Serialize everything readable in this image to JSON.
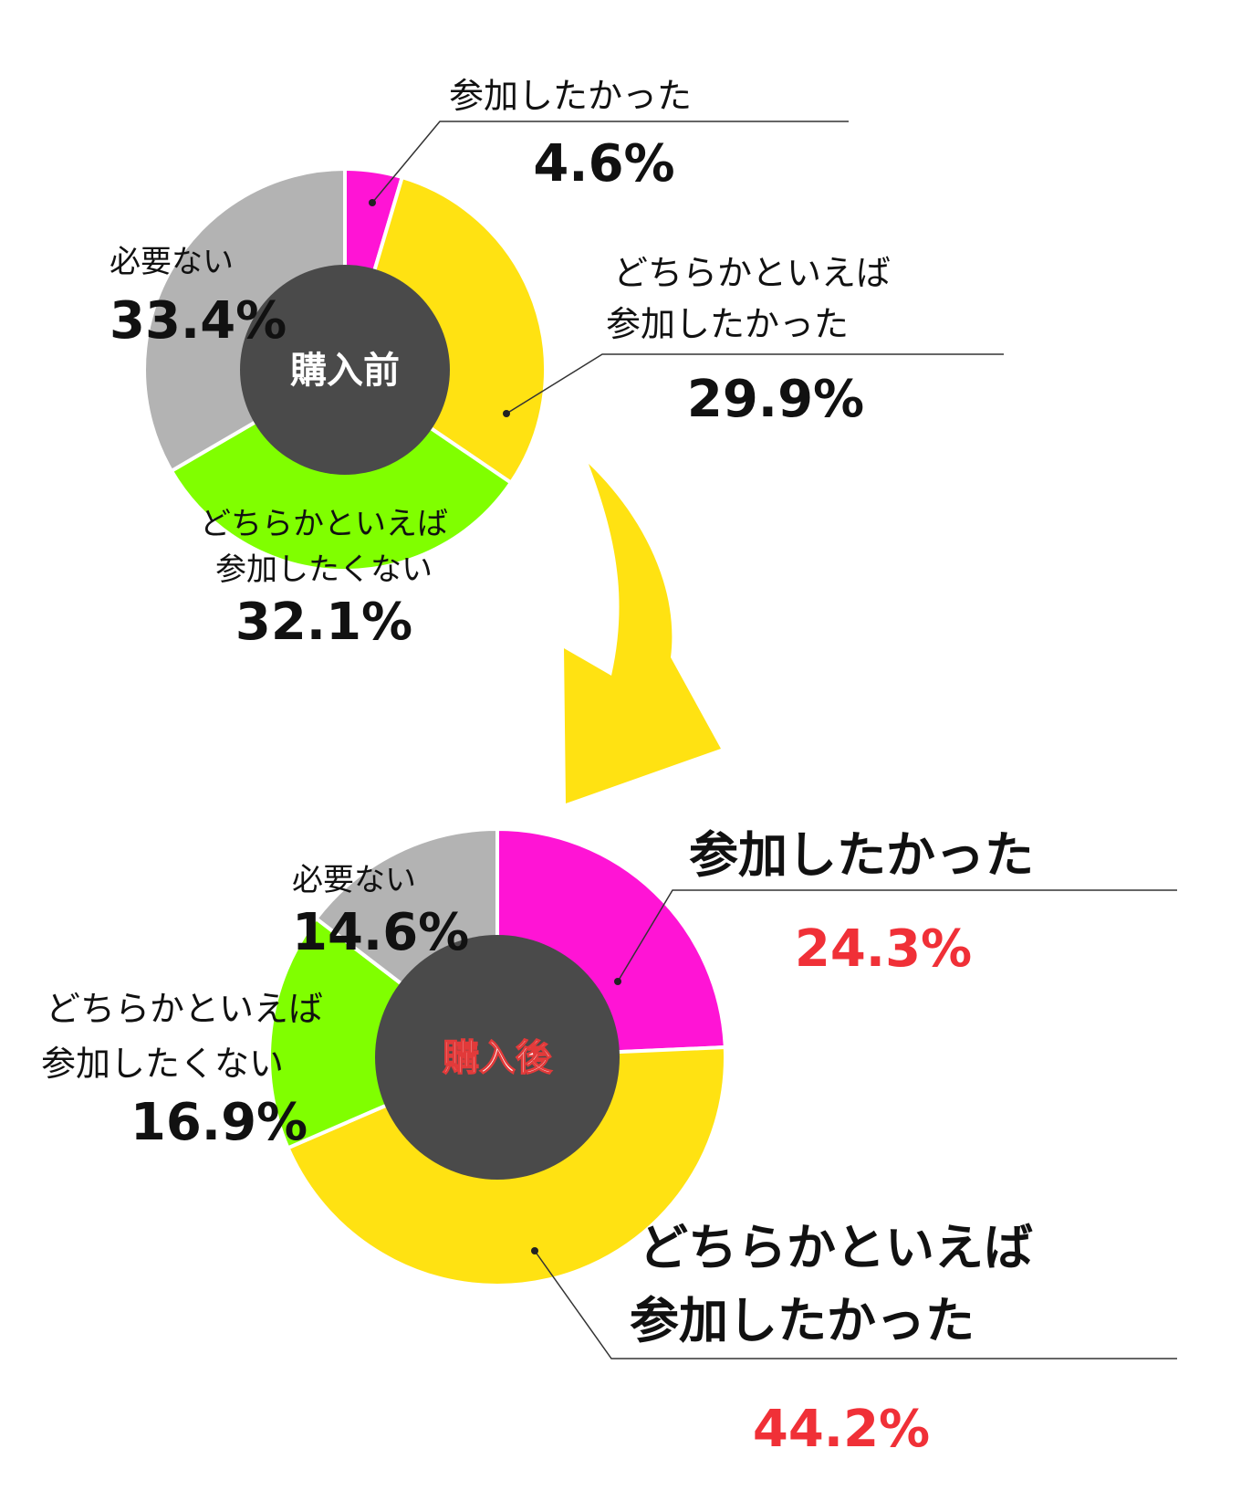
{
  "colors": {
    "magenta": "#ff14d5",
    "yellow": "#ffe212",
    "green": "#80ff00",
    "gray": "#b3b3b3",
    "hole": "#4a4a4a",
    "arrow": "#ffe212",
    "red": "#f03037"
  },
  "chart_data": [
    {
      "type": "pie",
      "center_label": "購入前",
      "slices": [
        {
          "label": "参加したかった",
          "value": 4.6,
          "display": "4.6%",
          "color": "#ff14d5"
        },
        {
          "label": "どちらかといえば参加したかった",
          "label_lines": [
            "どちらかといえば",
            "参加したかった"
          ],
          "value": 29.9,
          "display": "29.9%",
          "color": "#ffe212"
        },
        {
          "label": "どちらかといえば参加したくない",
          "label_lines": [
            "どちらかといえば",
            "参加したくない"
          ],
          "value": 32.1,
          "display": "32.1%",
          "color": "#80ff00"
        },
        {
          "label": "必要ない",
          "value": 33.4,
          "display": "33.4%",
          "color": "#b3b3b3"
        }
      ]
    },
    {
      "type": "pie",
      "center_label": "購入後",
      "slices": [
        {
          "label": "参加したかった",
          "value": 24.3,
          "display": "24.3%",
          "color": "#ff14d5"
        },
        {
          "label": "どちらかといえば参加したかった",
          "label_lines": [
            "どちらかといえば",
            "参加したかった"
          ],
          "value": 44.2,
          "display": "44.2%",
          "color": "#ffe212"
        },
        {
          "label": "どちらかといえば参加したくない",
          "label_lines": [
            "どちらかといえば",
            "参加したくない"
          ],
          "value": 16.9,
          "display": "16.9%",
          "color": "#80ff00"
        },
        {
          "label": "必要ない",
          "value": 14.6,
          "display": "14.6%",
          "color": "#b3b3b3"
        }
      ]
    }
  ]
}
